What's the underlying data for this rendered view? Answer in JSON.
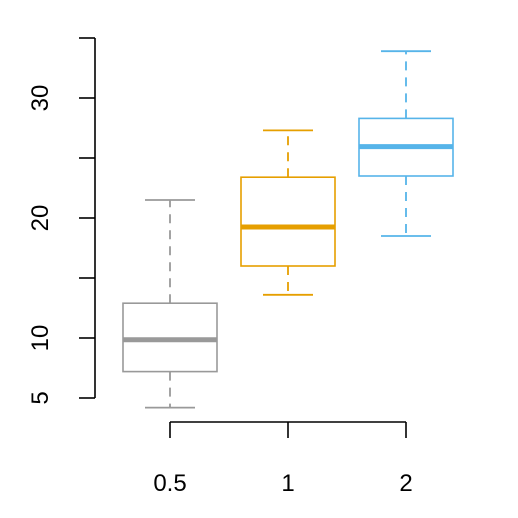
{
  "chart_data": {
    "type": "box",
    "title": "",
    "xlabel": "",
    "ylabel": "",
    "ylim": [
      5,
      35
    ],
    "y_ticks": [
      5,
      10,
      15,
      20,
      25,
      30,
      35
    ],
    "y_tick_labels": [
      "5",
      "10",
      "",
      "20",
      "",
      "30",
      ""
    ],
    "categories": [
      "0.5",
      "1",
      "2"
    ],
    "colors": [
      "#999999",
      "#E69F00",
      "#56B4E9"
    ],
    "grid": false,
    "boxes": [
      {
        "category": "0.5",
        "whisker_low": 4.2,
        "q1": 7.2,
        "median": 9.85,
        "q3": 12.9,
        "whisker_high": 21.5
      },
      {
        "category": "1",
        "whisker_low": 13.6,
        "q1": 16.0,
        "median": 19.25,
        "q3": 23.4,
        "whisker_high": 27.3
      },
      {
        "category": "2",
        "whisker_low": 18.5,
        "q1": 23.5,
        "median": 25.95,
        "q3": 28.3,
        "whisker_high": 33.9
      }
    ]
  }
}
